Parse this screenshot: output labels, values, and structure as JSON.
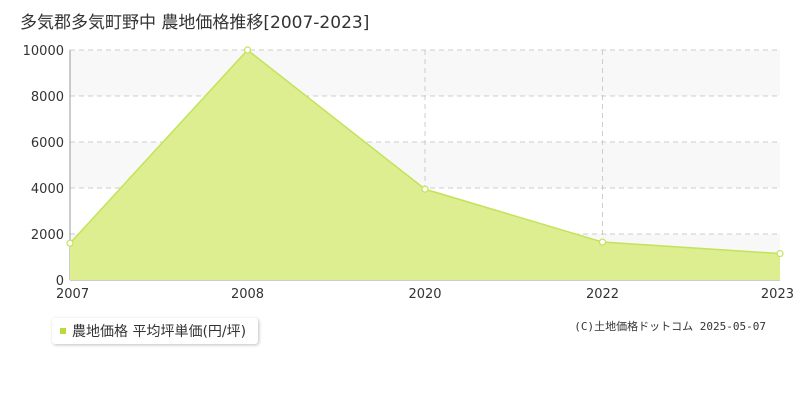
{
  "title": "多気郡多気町野中 農地価格推移[2007-2023]",
  "legend": {
    "label": "農地価格 平均坪単価(円/坪)"
  },
  "copyright": "(C)土地価格ドットコム 2025-05-07",
  "colors": {
    "fill": "#dcee8f",
    "line": "#c2e35a",
    "legend": "#b8dc3c",
    "band": "#f8f8f8",
    "grid": "#cccccc"
  },
  "chart_data": {
    "type": "area",
    "categories": [
      "2007",
      "2008",
      "2020",
      "2022",
      "2023"
    ],
    "series": [
      {
        "name": "農地価格 平均坪単価(円/坪)",
        "values": [
          1600,
          10000,
          3950,
          1650,
          1150
        ]
      }
    ],
    "yticks": [
      "0",
      "2000",
      "4000",
      "6000",
      "8000",
      "10000"
    ],
    "ylim": [
      0,
      10000
    ],
    "grid": true,
    "legend_position": "bottom-left"
  }
}
